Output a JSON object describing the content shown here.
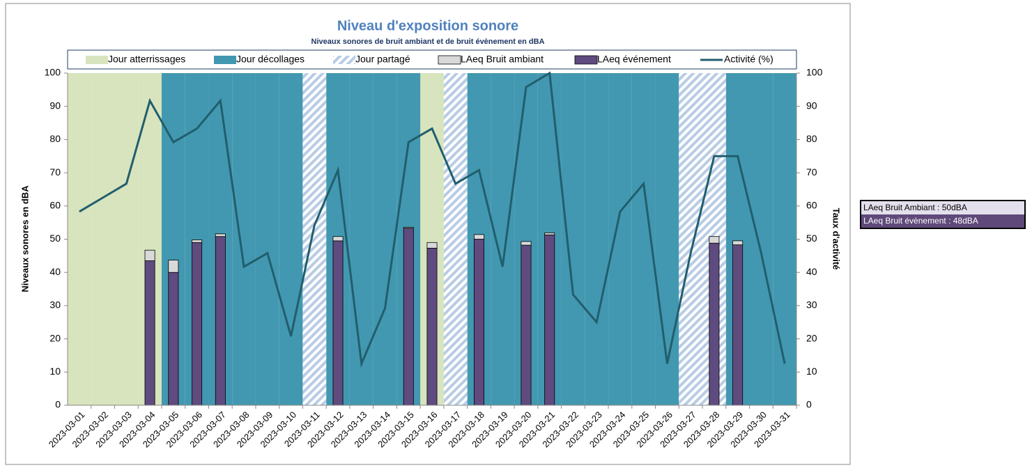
{
  "chart_data": {
    "type": "bar",
    "title": "Niveau d'exposition sonore",
    "subtitle": "Niveaux sonores de bruit ambiant et de bruit évènement en dBA",
    "y_label": "Niveaux sonores en dBA",
    "y2_label": "Taux d'activité",
    "categories": [
      "2023-03-01",
      "2023-03-02",
      "2023-03-03",
      "2023-03-04",
      "2023-03-05",
      "2023-03-06",
      "2023-03-07",
      "2023-03-08",
      "2023-03-09",
      "2023-03-10",
      "2023-03-11",
      "2023-03-12",
      "2023-03-13",
      "2023-03-14",
      "2023-03-15",
      "2023-03-16",
      "2023-03-17",
      "2023-03-18",
      "2023-03-19",
      "2023-03-20",
      "2023-03-21",
      "2023-03-22",
      "2023-03-23",
      "2023-03-24",
      "2023-03-25",
      "2023-03-26",
      "2023-03-27",
      "2023-03-28",
      "2023-03-29",
      "2023-03-30",
      "2023-03-31"
    ],
    "series": [
      {
        "name": "Jour atterrissages",
        "type": "bar",
        "stack": "day",
        "color": "#d7e4bd",
        "values": [
          100,
          100,
          100,
          100,
          null,
          null,
          null,
          null,
          null,
          null,
          null,
          null,
          null,
          null,
          null,
          100,
          null,
          null,
          null,
          null,
          null,
          null,
          null,
          null,
          null,
          null,
          null,
          null,
          null,
          null,
          null
        ]
      },
      {
        "name": "Jour décollages",
        "type": "bar",
        "stack": "day",
        "color": "#4298b0",
        "values": [
          null,
          null,
          null,
          null,
          100,
          100,
          100,
          100,
          100,
          100,
          null,
          100,
          100,
          100,
          100,
          null,
          null,
          100,
          100,
          100,
          100,
          100,
          100,
          100,
          100,
          100,
          null,
          null,
          100,
          100,
          100
        ]
      },
      {
        "name": "Jour partagé",
        "type": "bar",
        "stack": "day",
        "color": "#b8cce4",
        "pattern": "hatch",
        "values": [
          null,
          null,
          null,
          null,
          null,
          null,
          null,
          null,
          null,
          null,
          100,
          null,
          null,
          null,
          null,
          null,
          100,
          null,
          null,
          null,
          null,
          null,
          null,
          null,
          null,
          null,
          100,
          100,
          null,
          null,
          null
        ]
      },
      {
        "name": "LAeq Bruit ambiant",
        "type": "bar",
        "stack": "noise",
        "color": "#d9d9d9",
        "values": [
          null,
          null,
          null,
          3.2,
          3.7,
          0.8,
          0.8,
          null,
          null,
          null,
          null,
          1.3,
          null,
          null,
          0.3,
          1.7,
          null,
          1.4,
          null,
          1.1,
          0.6,
          null,
          null,
          null,
          null,
          null,
          null,
          2.0,
          1.2,
          null,
          null
        ]
      },
      {
        "name": "LAeq événement",
        "type": "bar",
        "stack": "noise",
        "color": "#5f4b7f",
        "values": [
          null,
          null,
          null,
          43.5,
          40,
          49,
          50.8,
          null,
          null,
          null,
          null,
          49.5,
          null,
          null,
          53.3,
          47.3,
          null,
          50,
          null,
          48.2,
          51.3,
          null,
          null,
          null,
          null,
          null,
          null,
          48.8,
          48.3,
          null,
          null
        ]
      },
      {
        "name": "Activité (%)",
        "type": "line",
        "axis": "y2",
        "color": "#215e6d",
        "values": [
          58.3,
          62.5,
          66.7,
          91.7,
          79.2,
          83.3,
          91.7,
          41.7,
          45.8,
          20.8,
          54.2,
          70.8,
          12.5,
          29.2,
          79.2,
          83.3,
          66.7,
          70.8,
          41.7,
          95.8,
          100,
          33.3,
          25,
          58.3,
          66.7,
          12.5,
          45.8,
          75,
          75,
          45.8,
          12.5
        ]
      }
    ],
    "ylim": [
      0,
      100
    ],
    "yticks": [
      0,
      10,
      20,
      30,
      40,
      50,
      60,
      70,
      80,
      90,
      100
    ],
    "y2lim": [
      0,
      100
    ],
    "y2ticks": [
      0,
      10,
      20,
      30,
      40,
      50,
      60,
      70,
      80,
      90,
      100
    ],
    "grid": false
  },
  "side_box": {
    "ambient": "LAeq Bruit Ambiant : 50dBA",
    "event": "LAeq Bruit évènement : 48dBA"
  }
}
